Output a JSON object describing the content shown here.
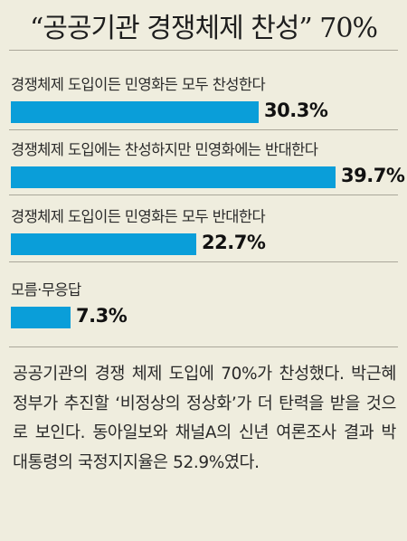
{
  "chart_data": {
    "type": "bar",
    "orientation": "horizontal",
    "title": "“공공기관 경쟁체제 찬성” 70%",
    "categories": [
      "경쟁체제 도입이든 민영화든 모두 찬성한다",
      "경쟁체제 도입에는 찬성하지만 민영화에는 반대한다",
      "경쟁체제 도입이든 민영화든 모두 반대한다",
      "모름·무응답"
    ],
    "values": [
      30.3,
      39.7,
      22.7,
      7.3
    ],
    "value_labels": [
      "30.3%",
      "39.7%",
      "22.7%",
      "7.3%"
    ],
    "unit": "%",
    "bar_color": "#0a9ed9",
    "grid": false,
    "legend": "none"
  },
  "caption": "공공기관의 경쟁 체제 도입에 70%가 찬성했다. 박근혜 정부가 추진할 ‘비정상의 정상화’가 더 탄력을 받을 것으로 보인다. 동아일보와 채널A의 신년 여론조사 결과 박 대통령의 국정지지율은 52.9%였다.",
  "colors": {
    "background": "#efedde",
    "bar": "#0a9ed9",
    "divider": "#aaa79a"
  }
}
